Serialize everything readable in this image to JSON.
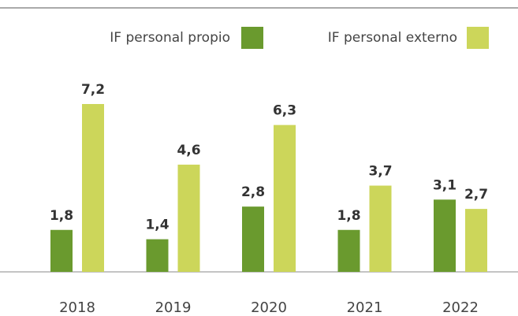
{
  "chart_data": {
    "type": "bar",
    "categories": [
      "2018",
      "2019",
      "2020",
      "2021",
      "2022"
    ],
    "series": [
      {
        "name": "IF personal propio",
        "color": "#6a9a2e",
        "values": [
          1.8,
          1.4,
          2.8,
          1.8,
          3.1
        ],
        "value_labels": [
          "1,8",
          "1,4",
          "2,8",
          "1,8",
          "3,1"
        ]
      },
      {
        "name": "IF personal externo",
        "color": "#ccd65a",
        "values": [
          7.2,
          4.6,
          6.3,
          3.7,
          2.7
        ],
        "value_labels": [
          "7,2",
          "4,6",
          "6,3",
          "3,7",
          "2,7"
        ]
      }
    ],
    "legend": "top-right"
  }
}
